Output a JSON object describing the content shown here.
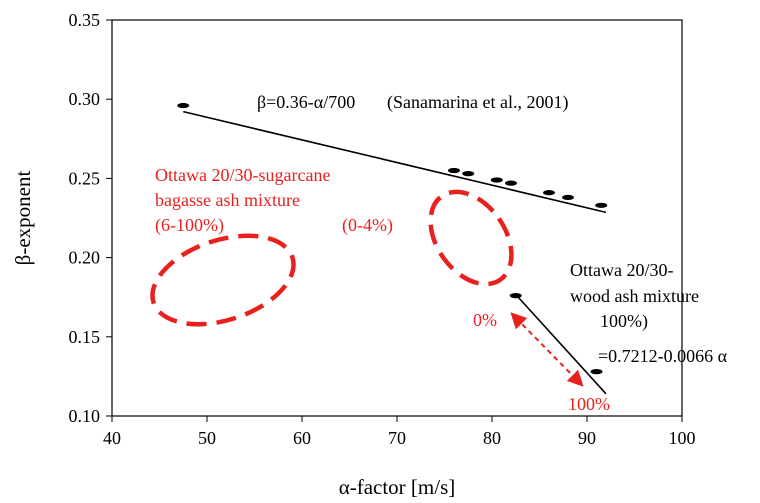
{
  "chart_data": {
    "type": "scatter",
    "xlabel": "α-factor [m/s]",
    "ylabel": "β-exponent",
    "xlim": [
      40,
      100
    ],
    "ylim": [
      0.1,
      0.35
    ],
    "x_ticks": [
      "40",
      "50",
      "60",
      "70",
      "80",
      "90",
      "100"
    ],
    "y_ticks": [
      "0.10",
      "0.15",
      "0.20",
      "0.25",
      "0.30",
      "0.35"
    ],
    "grid": false,
    "points_upper": [
      {
        "x": 47.5,
        "y": 0.296
      },
      {
        "x": 76.0,
        "y": 0.255
      },
      {
        "x": 77.5,
        "y": 0.253
      },
      {
        "x": 80.5,
        "y": 0.249
      },
      {
        "x": 82.0,
        "y": 0.247
      },
      {
        "x": 86.0,
        "y": 0.241
      },
      {
        "x": 88.0,
        "y": 0.238
      },
      {
        "x": 91.5,
        "y": 0.233
      }
    ],
    "points_lower": [
      {
        "x": 82.5,
        "y": 0.176
      },
      {
        "x": 91.0,
        "y": 0.128
      }
    ],
    "upper_fit_line": {
      "x_start": 47.5,
      "x_end": 92.0
    },
    "lower_fit_line": {
      "x_start": 82.5,
      "x_end": 92.0
    },
    "annotations": {
      "upper_equation": "β=0.36-α/700",
      "upper_citation": "(Sanamarina et al., 2001)",
      "sugarcane_line1": "Ottawa 20/30-sugarcane",
      "sugarcane_line2": "bagasse ash mixture",
      "sugarcane_line3": "(6-100%)",
      "sugarcane_line4": "(0-4%)",
      "wood_line1": "Ottawa 20/30-",
      "wood_line2": "wood ash mixture",
      "wood_line3": "100%)",
      "lower_equation": "=0.7212-0.0066 α",
      "label_zero": "0%",
      "label_hundred": "100%"
    },
    "colors": {
      "red": "#e8211e",
      "black": "#000000"
    }
  }
}
